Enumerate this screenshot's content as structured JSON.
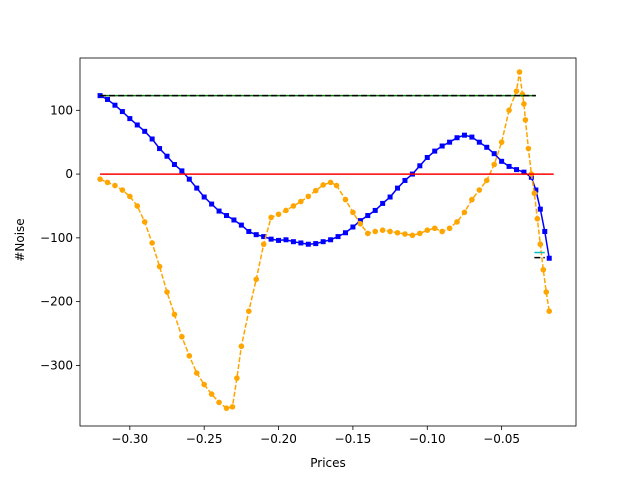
{
  "chart_data": {
    "type": "line",
    "title": "",
    "xlabel": "Prices",
    "ylabel": "#Noise",
    "xlim": [
      -0.3335,
      0.0
    ],
    "ylim": [
      -395,
      182
    ],
    "grid": false,
    "legend": "none",
    "x_ticks": [
      -0.3,
      -0.25,
      -0.2,
      -0.15,
      -0.1,
      -0.05
    ],
    "x_tick_labels": [
      "−0.30",
      "−0.25",
      "−0.20",
      "−0.15",
      "−0.10",
      "−0.05"
    ],
    "y_ticks": [
      -300,
      -200,
      -100,
      0,
      100
    ],
    "y_tick_labels": [
      "−300",
      "−200",
      "−100",
      "0",
      "100"
    ],
    "series": [
      {
        "style": "blue line with square markers",
        "color": "#0000ff",
        "x": [
          -0.32,
          -0.315,
          -0.31,
          -0.305,
          -0.3,
          -0.295,
          -0.29,
          -0.285,
          -0.28,
          -0.275,
          -0.27,
          -0.265,
          -0.26,
          -0.255,
          -0.25,
          -0.245,
          -0.24,
          -0.235,
          -0.23,
          -0.225,
          -0.22,
          -0.215,
          -0.21,
          -0.205,
          -0.2,
          -0.195,
          -0.19,
          -0.185,
          -0.18,
          -0.175,
          -0.17,
          -0.165,
          -0.16,
          -0.155,
          -0.15,
          -0.145,
          -0.14,
          -0.135,
          -0.13,
          -0.125,
          -0.12,
          -0.115,
          -0.11,
          -0.105,
          -0.1,
          -0.095,
          -0.09,
          -0.085,
          -0.08,
          -0.075,
          -0.07,
          -0.065,
          -0.06,
          -0.055,
          -0.05,
          -0.045,
          -0.04,
          -0.035,
          -0.03,
          -0.027,
          -0.024,
          -0.021,
          -0.018
        ],
        "y": [
          123,
          117,
          108,
          98,
          87,
          77,
          67,
          55,
          40,
          28,
          15,
          5,
          -8,
          -22,
          -36,
          -47,
          -58,
          -65,
          -72,
          -80,
          -90,
          -95,
          -98,
          -102,
          -104,
          -103,
          -106,
          -108,
          -110,
          -109,
          -106,
          -103,
          -98,
          -92,
          -83,
          -73,
          -65,
          -57,
          -46,
          -36,
          -22,
          -10,
          0,
          13,
          26,
          36,
          44,
          50,
          57,
          61,
          58,
          50,
          42,
          32,
          20,
          12,
          7,
          3,
          -5,
          -25,
          -55,
          -90,
          -132
        ]
      },
      {
        "style": "orange line with circle markers",
        "color": "#ffa500",
        "x": [
          -0.32,
          -0.315,
          -0.31,
          -0.305,
          -0.3,
          -0.295,
          -0.29,
          -0.285,
          -0.28,
          -0.275,
          -0.27,
          -0.265,
          -0.26,
          -0.255,
          -0.25,
          -0.245,
          -0.24,
          -0.235,
          -0.231,
          -0.228,
          -0.225,
          -0.22,
          -0.215,
          -0.21,
          -0.205,
          -0.2,
          -0.195,
          -0.19,
          -0.185,
          -0.18,
          -0.175,
          -0.17,
          -0.165,
          -0.161,
          -0.155,
          -0.15,
          -0.145,
          -0.14,
          -0.135,
          -0.13,
          -0.125,
          -0.12,
          -0.115,
          -0.11,
          -0.105,
          -0.1,
          -0.095,
          -0.09,
          -0.085,
          -0.08,
          -0.075,
          -0.07,
          -0.065,
          -0.06,
          -0.055,
          -0.05,
          -0.045,
          -0.04,
          -0.038,
          -0.036,
          -0.035,
          -0.034,
          -0.032,
          -0.03,
          -0.028,
          -0.026,
          -0.024,
          -0.022,
          -0.02,
          -0.018
        ],
        "y": [
          -8,
          -13,
          -18,
          -25,
          -35,
          -50,
          -75,
          -108,
          -145,
          -185,
          -220,
          -255,
          -285,
          -312,
          -330,
          -345,
          -358,
          -367,
          -365,
          -320,
          -270,
          -215,
          -165,
          -110,
          -68,
          -63,
          -57,
          -50,
          -43,
          -35,
          -26,
          -17,
          -13,
          -18,
          -40,
          -60,
          -78,
          -93,
          -90,
          -88,
          -90,
          -92,
          -94,
          -96,
          -93,
          -88,
          -85,
          -90,
          -85,
          -75,
          -60,
          -40,
          -25,
          -10,
          15,
          50,
          100,
          130,
          160,
          125,
          110,
          85,
          40,
          0,
          -30,
          -70,
          -110,
          -150,
          -185,
          -215
        ]
      },
      {
        "style": "red horizontal line",
        "color": "#ff0000",
        "x": [
          -0.32,
          -0.015
        ],
        "y": [
          0,
          0
        ]
      },
      {
        "style": "green horizontal line",
        "color": "#008000",
        "x": [
          -0.32,
          -0.027
        ],
        "y": [
          123,
          123
        ]
      },
      {
        "style": "black dashed horizontal line",
        "color": "#000000",
        "x": [
          -0.32,
          -0.027
        ],
        "y": [
          123,
          123
        ]
      },
      {
        "style": "cyan short horizontal line",
        "color": "#00bfbf",
        "x": [
          -0.028,
          -0.021
        ],
        "y": [
          -123,
          -123
        ]
      },
      {
        "style": "black dashed short horizontal line",
        "color": "#000000",
        "x": [
          -0.028,
          -0.021
        ],
        "y": [
          -131,
          -131
        ]
      }
    ]
  }
}
